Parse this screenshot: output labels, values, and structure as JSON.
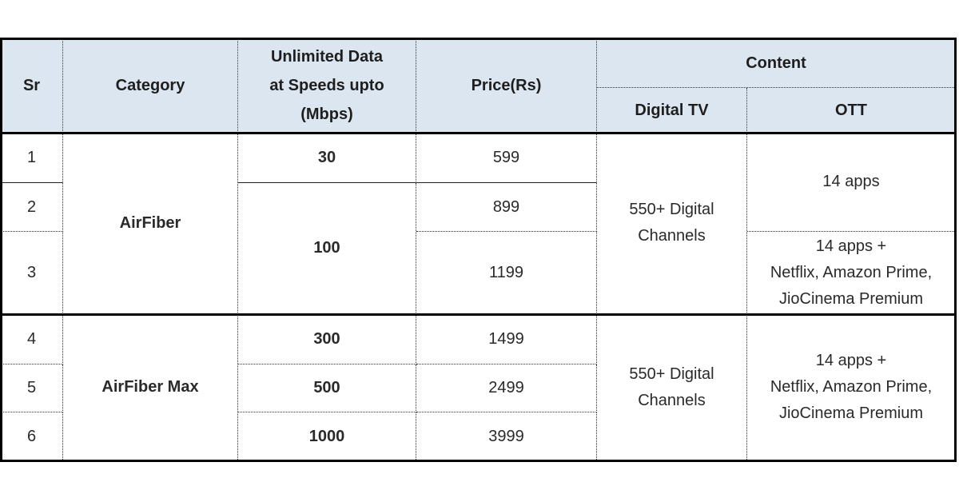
{
  "header": {
    "sr": "Sr",
    "category": "Category",
    "speed": "Unlimited Data\nat Speeds upto\n(Mbps)",
    "price": "Price(Rs)",
    "content": "Content",
    "digital_tv": "Digital TV",
    "ott": "OTT"
  },
  "groups": [
    {
      "category": "AirFiber",
      "digital_tv": "550+ Digital\nChannels"
    },
    {
      "category": "AirFiber Max",
      "digital_tv": "550+ Digital\nChannels"
    }
  ],
  "rows": [
    {
      "sr": "1",
      "speed": "30",
      "price": "599"
    },
    {
      "sr": "2",
      "speed": "100",
      "price": "899"
    },
    {
      "sr": "3",
      "speed": "100",
      "price": "1199"
    },
    {
      "sr": "4",
      "speed": "300",
      "price": "1499"
    },
    {
      "sr": "5",
      "speed": "500",
      "price": "2499"
    },
    {
      "sr": "6",
      "speed": "1000",
      "price": "3999"
    }
  ],
  "ott": {
    "rows_1_2": "14 apps",
    "row_3": "14 apps +\nNetflix, Amazon Prime,\nJioCinema Premium",
    "rows_4_6": "14 apps +\nNetflix, Amazon Prime,\nJioCinema Premium"
  }
}
